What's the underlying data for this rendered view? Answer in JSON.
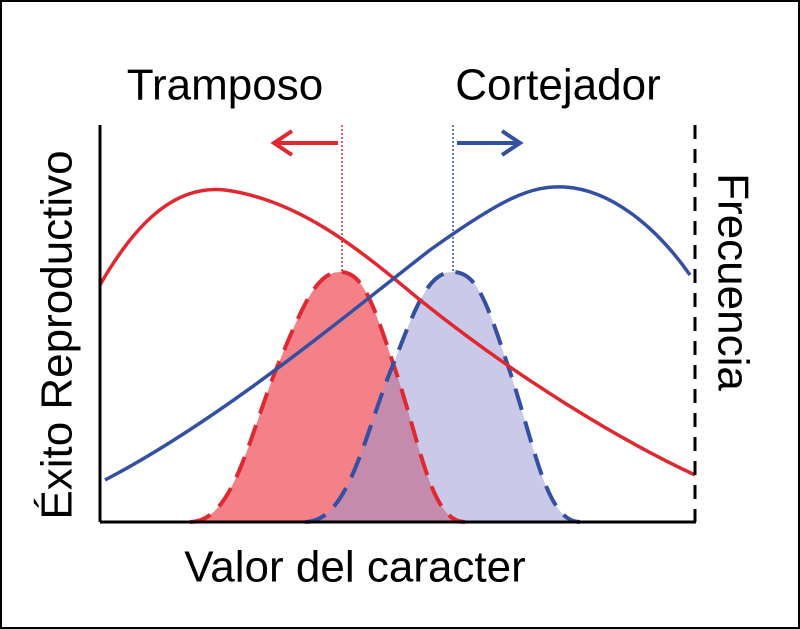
{
  "labels": {
    "cheater": "Tramposo",
    "courter": "Cortejador",
    "y_axis": "Éxito Reproductivo",
    "y2_axis": "Frecuencia",
    "x_axis": "Valor del caracter"
  }
}
